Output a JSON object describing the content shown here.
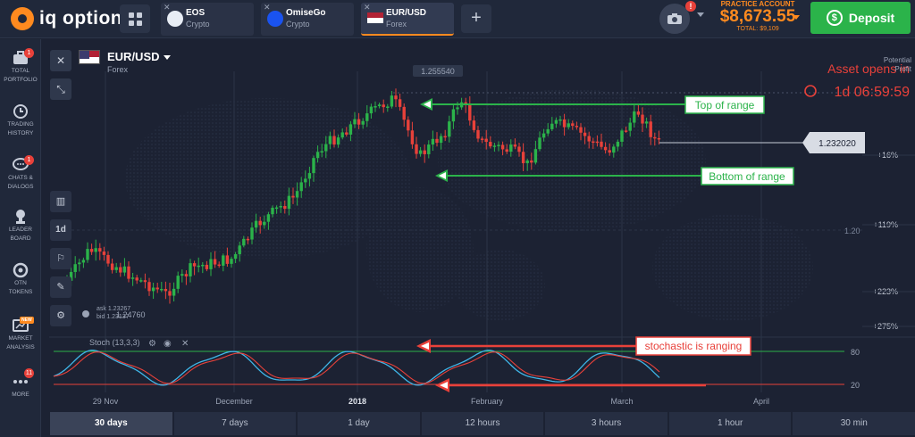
{
  "brand": {
    "name": "iq option"
  },
  "tabs": [
    {
      "name": "EOS",
      "type": "Crypto",
      "icon_color": "#e8edf5"
    },
    {
      "name": "OmiseGo",
      "type": "Crypto",
      "icon_color": "#1a53f0"
    },
    {
      "name": "EUR/USD",
      "type": "Forex",
      "icon_color": "#b22234"
    }
  ],
  "account": {
    "label": "PRACTICE ACCOUNT",
    "balance": "$8,673.55",
    "total": "TOTAL: $9,109",
    "camera_alert": "!"
  },
  "deposit_label": "Deposit",
  "sidebar": [
    {
      "icon": "briefcase-icon",
      "label1": "TOTAL",
      "label2": "PORTFOLIO",
      "badge": "1"
    },
    {
      "icon": "clock-icon",
      "label1": "TRADING",
      "label2": "HISTORY",
      "badge": ""
    },
    {
      "icon": "chat-icon",
      "label1": "CHATS &",
      "label2": "DIALOGS",
      "badge": "1"
    },
    {
      "icon": "trophy-icon",
      "label1": "LEADER",
      "label2": "BOARD",
      "badge": ""
    },
    {
      "icon": "token-icon",
      "label1": "OTN",
      "label2": "TOKENS",
      "badge": ""
    },
    {
      "icon": "analysis-icon",
      "label1": "MARKET",
      "label2": "ANALYSIS",
      "badge": "NEW"
    },
    {
      "icon": "more-icon",
      "label1": "MORE",
      "label2": "",
      "badge": "11"
    }
  ],
  "instrument": {
    "name": "EUR/USD",
    "type": "Forex"
  },
  "chart": {
    "top_price": "1.255540",
    "current_price": "1.232020",
    "mid_axis": "1.20",
    "asset_status": "Asset opens in",
    "countdown": "1d 06:59:59",
    "potential_label1": "Potential",
    "potential_label2": "Profit",
    "profit_levels": [
      "+16%",
      "+119%",
      "+223%",
      "+275%"
    ],
    "ask": "ask 1.23267",
    "bid": "bid 1.23137",
    "cursor_price": "1.24760",
    "annotations": {
      "top_of_range": "Top of range",
      "bottom_of_range": "Bottom of range",
      "stochastic": "stochastic is ranging"
    },
    "indicator_label": "Stoch (13,3,3)",
    "stoch_levels": [
      "80",
      "20"
    ],
    "x_labels": [
      "29 Nov",
      "December",
      "2018",
      "February",
      "March",
      "April"
    ]
  },
  "periods": [
    "30 days",
    "7 days",
    "1 day",
    "12 hours",
    "3 hours",
    "1 hour",
    "30 min"
  ],
  "active_period": "30 days",
  "colors": {
    "up": "#2bb34a",
    "down": "#e8413a",
    "accent": "#ff8a1f",
    "stoch_k": "#3fb6e8",
    "stoch_d": "#e8413a"
  }
}
